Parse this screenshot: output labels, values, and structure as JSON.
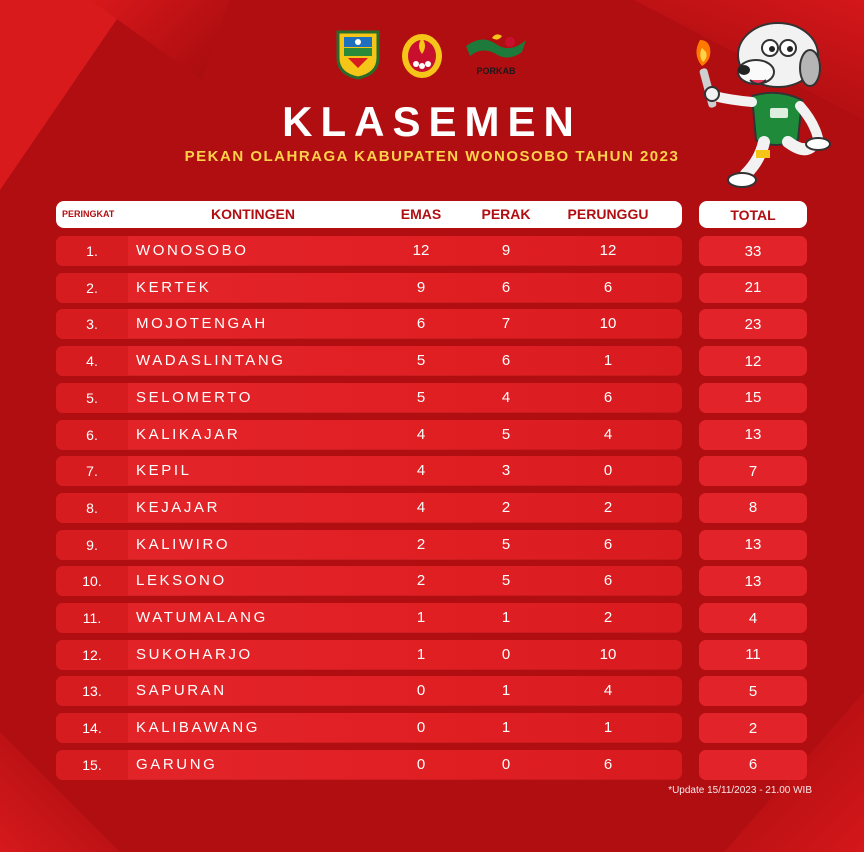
{
  "header": {
    "title": "KLASEMEN",
    "subtitle": "PEKAN OLAHRAGA KABUPATEN WONOSOBO TAHUN 2023",
    "logo_text": "PORKAB"
  },
  "table": {
    "columns": {
      "rank": "PERINGKAT",
      "kontingen": "KONTINGEN",
      "emas": "EMAS",
      "perak": "PERAK",
      "perunggu": "PERUNGGU",
      "total": "TOTAL"
    },
    "rows": [
      {
        "rank": "1.",
        "kontingen": "WONOSOBO",
        "emas": "12",
        "perak": "9",
        "perunggu": "12",
        "total": "33"
      },
      {
        "rank": "2.",
        "kontingen": "KERTEK",
        "emas": "9",
        "perak": "6",
        "perunggu": "6",
        "total": "21"
      },
      {
        "rank": "3.",
        "kontingen": "MOJOTENGAH",
        "emas": "6",
        "perak": "7",
        "perunggu": "10",
        "total": "23"
      },
      {
        "rank": "4.",
        "kontingen": "WADASLINTANG",
        "emas": "5",
        "perak": "6",
        "perunggu": "1",
        "total": "12"
      },
      {
        "rank": "5.",
        "kontingen": "SELOMERTO",
        "emas": "5",
        "perak": "4",
        "perunggu": "6",
        "total": "15"
      },
      {
        "rank": "6.",
        "kontingen": "KALIKAJAR",
        "emas": "4",
        "perak": "5",
        "perunggu": "4",
        "total": "13"
      },
      {
        "rank": "7.",
        "kontingen": "KEPIL",
        "emas": "4",
        "perak": "3",
        "perunggu": "0",
        "total": "7"
      },
      {
        "rank": "8.",
        "kontingen": "KEJAJAR",
        "emas": "4",
        "perak": "2",
        "perunggu": "2",
        "total": "8"
      },
      {
        "rank": "9.",
        "kontingen": "KALIWIRO",
        "emas": "2",
        "perak": "5",
        "perunggu": "6",
        "total": "13"
      },
      {
        "rank": "10.",
        "kontingen": "LEKSONO",
        "emas": "2",
        "perak": "5",
        "perunggu": "6",
        "total": "13"
      },
      {
        "rank": "11.",
        "kontingen": "WATUMALANG",
        "emas": "1",
        "perak": "1",
        "perunggu": "2",
        "total": "4"
      },
      {
        "rank": "12.",
        "kontingen": "SUKOHARJO",
        "emas": "1",
        "perak": "0",
        "perunggu": "10",
        "total": "11"
      },
      {
        "rank": "13.",
        "kontingen": "SAPURAN",
        "emas": "0",
        "perak": "1",
        "perunggu": "4",
        "total": "5"
      },
      {
        "rank": "14.",
        "kontingen": "KALIBAWANG",
        "emas": "0",
        "perak": "1",
        "perunggu": "1",
        "total": "2"
      },
      {
        "rank": "15.",
        "kontingen": "GARUNG",
        "emas": "0",
        "perak": "0",
        "perunggu": "6",
        "total": "6"
      }
    ]
  },
  "footer": {
    "update_note": "*Update 15/11/2023 - 21.00 WIB"
  },
  "colors": {
    "background": "#b10e12",
    "row": "#e3262a",
    "header_bg": "#ffffff",
    "header_text": "#b10e12",
    "subtitle": "#ffd24a"
  },
  "icons": [
    "regency-crest-icon",
    "koni-emblem-icon",
    "porkab-logo-icon",
    "mascot-torch-dog-icon"
  ]
}
